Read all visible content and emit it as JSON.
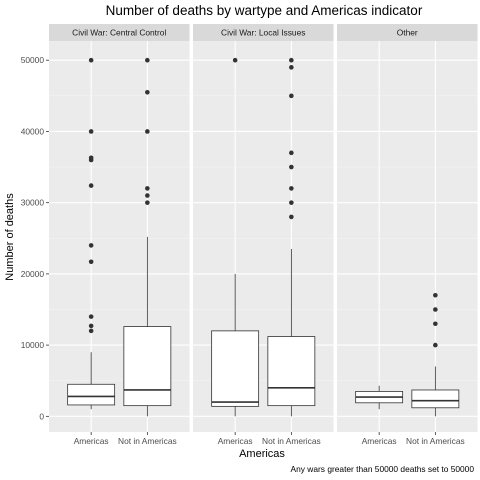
{
  "chart_data": {
    "type": "boxplot",
    "title": "Number of deaths by wartype and Americas indicator",
    "xlabel": "Americas",
    "ylabel": "Number of deaths",
    "caption": "Any wars greater than 50000 deaths set to 50000",
    "ylim": [
      -2200,
      52700
    ],
    "yticks": [
      0,
      10000,
      20000,
      30000,
      40000,
      50000
    ],
    "categories": [
      "Americas",
      "Not in Americas"
    ],
    "grid": true,
    "colors": {
      "panel_bg": "#ebebeb",
      "strip_bg": "#d9d9d9",
      "grid_major": "#ffffff",
      "box_fill": "#ffffff",
      "box_line": "#333333",
      "outlier": "#333333"
    },
    "facets": [
      {
        "name": "Civil War: Central Control",
        "boxes": [
          {
            "category": "Americas",
            "whisker_low": 1000,
            "q1": 1600,
            "median": 2800,
            "q3": 4500,
            "whisker_high": 9000,
            "outliers": [
              12000,
              12700,
              14000,
              21700,
              24000,
              32400,
              36000,
              36300,
              40000,
              50000
            ]
          },
          {
            "category": "Not in Americas",
            "whisker_low": 0,
            "q1": 1500,
            "median": 3700,
            "q3": 12600,
            "whisker_high": 25200,
            "outliers": [
              30000,
              31000,
              32000,
              40000,
              45500,
              50000
            ]
          }
        ]
      },
      {
        "name": "Civil War: Local Issues",
        "boxes": [
          {
            "category": "Americas",
            "whisker_low": 0,
            "q1": 1400,
            "median": 2000,
            "q3": 12000,
            "whisker_high": 20000,
            "outliers": [
              50000
            ]
          },
          {
            "category": "Not in Americas",
            "whisker_low": 0,
            "q1": 1500,
            "median": 4000,
            "q3": 11200,
            "whisker_high": 23500,
            "outliers": [
              28000,
              30000,
              32000,
              35000,
              37000,
              45000,
              49000,
              50000
            ]
          }
        ]
      },
      {
        "name": "Other",
        "boxes": [
          {
            "category": "Americas",
            "whisker_low": 1000,
            "q1": 1900,
            "median": 2700,
            "q3": 3500,
            "whisker_high": 4300,
            "outliers": []
          },
          {
            "category": "Not in Americas",
            "whisker_low": 0,
            "q1": 1200,
            "median": 2200,
            "q3": 3700,
            "whisker_high": 7000,
            "outliers": [
              10000,
              13000,
              15000,
              17000
            ]
          }
        ]
      }
    ]
  }
}
